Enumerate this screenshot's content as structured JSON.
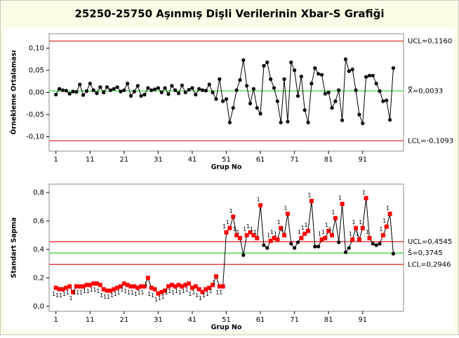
{
  "title": "25250-25750 Aşınmış Dişli Verilerinin Xbar-S Grafiği",
  "chart_data": [
    {
      "type": "control",
      "ylabel": "Örnekleme Ortalaması",
      "xlabel": "Grup No",
      "xlim": [
        -1,
        103
      ],
      "xticks": [
        1,
        11,
        21,
        31,
        41,
        51,
        61,
        71,
        81,
        91
      ],
      "ylim": [
        -0.1326,
        0.1326
      ],
      "yticks": [
        {
          "value": -0.1,
          "label": "-0,10"
        },
        {
          "value": -0.05,
          "label": "-0,05"
        },
        {
          "value": 0,
          "label": "0,00"
        },
        {
          "value": 0.05,
          "label": "0,05"
        },
        {
          "value": 0.1,
          "label": "0,10"
        }
      ],
      "limits": [
        {
          "value": 0.116,
          "label": "UCL=0,1160",
          "color": "#e02020"
        },
        {
          "value": 0.0033,
          "label": "X̿=0,0033",
          "color": "#30d030"
        },
        {
          "value": -0.1093,
          "label": "LCL=-0,1093",
          "color": "#e02020"
        }
      ],
      "series": [
        {
          "color": "#000000",
          "flag_color": "#ff0000",
          "x": [
            1,
            2,
            3,
            4,
            5,
            6,
            7,
            8,
            9,
            10,
            11,
            12,
            13,
            14,
            15,
            16,
            17,
            18,
            19,
            20,
            21,
            22,
            23,
            24,
            25,
            26,
            27,
            28,
            29,
            30,
            31,
            32,
            33,
            34,
            35,
            36,
            37,
            38,
            39,
            40,
            41,
            42,
            43,
            44,
            45,
            46,
            47,
            48,
            49,
            50,
            51,
            52,
            53,
            54,
            55,
            56,
            57,
            58,
            59,
            60,
            61,
            62,
            63,
            64,
            65,
            66,
            67,
            68,
            69,
            70,
            71,
            72,
            73,
            74,
            75,
            76,
            77,
            78,
            79,
            80,
            81,
            82,
            83,
            84,
            85,
            86,
            87,
            88,
            89,
            90,
            91,
            92,
            93,
            94,
            95,
            96,
            97,
            98,
            99,
            100
          ],
          "values": [
            -0.005,
            0.008,
            0.005,
            0.004,
            -0.003,
            0.002,
            0.001,
            0.018,
            -0.006,
            0.003,
            0.02,
            0.005,
            -0.002,
            0.012,
            0.0,
            0.012,
            0.005,
            0.008,
            0.012,
            0.002,
            0.005,
            0.02,
            -0.008,
            0.002,
            0.015,
            -0.008,
            -0.005,
            0.01,
            0.005,
            0.007,
            0.01,
            0.0,
            0.01,
            -0.004,
            0.015,
            0.005,
            -0.002,
            0.016,
            0.0,
            0.006,
            0.01,
            -0.005,
            0.008,
            0.005,
            0.004,
            0.018,
            0.0,
            -0.015,
            0.03,
            -0.02,
            -0.015,
            -0.068,
            -0.035,
            0.005,
            0.028,
            0.073,
            0.015,
            -0.025,
            0.008,
            -0.035,
            -0.048,
            0.06,
            0.068,
            0.03,
            0.01,
            -0.02,
            -0.068,
            0.03,
            -0.066,
            0.068,
            0.05,
            -0.008,
            0.036,
            -0.04,
            -0.068,
            0.02,
            0.055,
            0.042,
            0.04,
            -0.003,
            0.0,
            -0.035,
            -0.02,
            0.005,
            -0.063,
            0.075,
            0.048,
            0.052,
            0.005,
            -0.05,
            -0.07,
            0.035,
            0.038,
            0.038,
            0.02,
            0.003,
            -0.02,
            -0.018,
            -0.062,
            0.055
          ]
        }
      ]
    },
    {
      "type": "control",
      "ylabel": "Standart Sapma",
      "xlabel": "Grup No",
      "test_label": "1",
      "xlim": [
        -1,
        103
      ],
      "xticks": [
        1,
        11,
        21,
        31,
        41,
        51,
        61,
        71,
        81,
        91
      ],
      "ylim": [
        -0.035,
        0.859
      ],
      "yticks": [
        {
          "value": 0,
          "label": "0,0"
        },
        {
          "value": 0.2,
          "label": "0,2"
        },
        {
          "value": 0.4,
          "label": "0,4"
        },
        {
          "value": 0.6,
          "label": "0,6"
        },
        {
          "value": 0.8,
          "label": "0,8"
        }
      ],
      "limits": [
        {
          "value": 0.4545,
          "label": "UCL=0,4545",
          "color": "#e02020"
        },
        {
          "value": 0.3745,
          "label": "S̄=0,3745",
          "color": "#30d030"
        },
        {
          "value": 0.2946,
          "label": "LCL=0,2946",
          "color": "#e02020"
        }
      ],
      "series": [
        {
          "color": "#000000",
          "flag_color": "#ff0000",
          "x": [
            1,
            2,
            3,
            4,
            5,
            6,
            7,
            8,
            9,
            10,
            11,
            12,
            13,
            14,
            15,
            16,
            17,
            18,
            19,
            20,
            21,
            22,
            23,
            24,
            25,
            26,
            27,
            28,
            29,
            30,
            31,
            32,
            33,
            34,
            35,
            36,
            37,
            38,
            39,
            40,
            41,
            42,
            43,
            44,
            45,
            46,
            47,
            48,
            49,
            50,
            51,
            52,
            53,
            54,
            55,
            56,
            57,
            58,
            59,
            60,
            61,
            62,
            63,
            64,
            65,
            66,
            67,
            68,
            69,
            70,
            71,
            72,
            73,
            74,
            75,
            76,
            77,
            78,
            79,
            80,
            81,
            82,
            83,
            84,
            85,
            86,
            87,
            88,
            89,
            90,
            91,
            92,
            93,
            94,
            95,
            96,
            97,
            98,
            99,
            100
          ],
          "values": [
            0.13,
            0.12,
            0.12,
            0.13,
            0.14,
            0.1,
            0.14,
            0.14,
            0.14,
            0.15,
            0.15,
            0.16,
            0.16,
            0.15,
            0.12,
            0.11,
            0.11,
            0.12,
            0.13,
            0.14,
            0.16,
            0.15,
            0.14,
            0.14,
            0.13,
            0.14,
            0.14,
            0.2,
            0.13,
            0.12,
            0.09,
            0.1,
            0.11,
            0.14,
            0.15,
            0.14,
            0.15,
            0.14,
            0.15,
            0.16,
            0.13,
            0.14,
            0.12,
            0.1,
            0.12,
            0.13,
            0.15,
            0.21,
            0.14,
            0.14,
            0.52,
            0.55,
            0.63,
            0.5,
            0.48,
            0.36,
            0.5,
            0.52,
            0.5,
            0.48,
            0.71,
            0.43,
            0.41,
            0.46,
            0.48,
            0.47,
            0.55,
            0.5,
            0.65,
            0.44,
            0.41,
            0.45,
            0.48,
            0.51,
            0.53,
            0.74,
            0.42,
            0.42,
            0.47,
            0.48,
            0.53,
            0.5,
            0.62,
            0.45,
            0.72,
            0.38,
            0.41,
            0.47,
            0.55,
            0.47,
            0.55,
            0.76,
            0.48,
            0.44,
            0.43,
            0.44,
            0.5,
            0.56,
            0.65,
            0.37
          ]
        }
      ]
    }
  ]
}
